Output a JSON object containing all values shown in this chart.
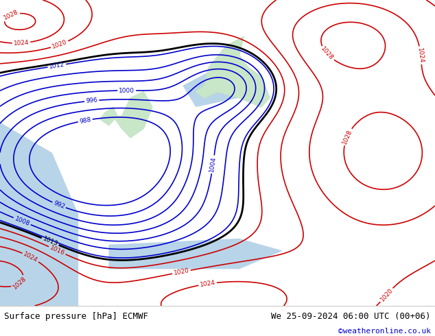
{
  "title_left": "Surface pressure [hPa] ECMWF",
  "title_right": "We 25-09-2024 06:00 UTC (00+06)",
  "copyright": "©weatheronline.co.uk",
  "bg_color": "#e8f4e8",
  "land_color": "#c8e6c8",
  "sea_color": "#d0e8f0",
  "isobar_blue_color": "#0000cc",
  "isobar_red_color": "#cc0000",
  "isobar_black_color": "#000000",
  "text_color": "#000000",
  "copyright_color": "#0000cc",
  "bottom_bar_color": "#ffffff",
  "figsize": [
    6.34,
    4.9
  ],
  "dpi": 100
}
